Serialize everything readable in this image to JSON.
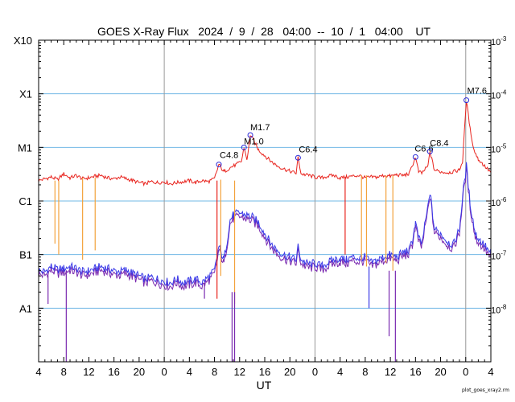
{
  "chart_data": {
    "type": "line",
    "title": "GOES X-Ray Flux   2024  /  9  /  28   04:00  --  10  /  1   04:00    UT",
    "xlabel": "UT",
    "x_tick_labels": [
      "4",
      "8",
      "12",
      "16",
      "20",
      "0",
      "4",
      "8",
      "12",
      "16",
      "20",
      "0",
      "4",
      "8",
      "12",
      "16",
      "20",
      "0",
      "4"
    ],
    "x_range_hours": [
      0,
      72
    ],
    "day_boundaries_hours": [
      20,
      44,
      68
    ],
    "y_scale": "log",
    "y_range": [
      1e-09,
      0.001
    ],
    "left_axis_labels": [
      {
        "label": "X10",
        "flux": 0.001
      },
      {
        "label": "X1",
        "flux": 0.0001
      },
      {
        "label": "M1",
        "flux": 1e-05
      },
      {
        "label": "C1",
        "flux": 1e-06
      },
      {
        "label": "B1",
        "flux": 1e-07
      },
      {
        "label": "A1",
        "flux": 1e-08
      }
    ],
    "right_axis_labels": [
      {
        "mant": "10",
        "exp": "-3",
        "flux": 0.001
      },
      {
        "mant": "10",
        "exp": "-4",
        "flux": 0.0001
      },
      {
        "mant": "10",
        "exp": "-5",
        "flux": 1e-05
      },
      {
        "mant": "10",
        "exp": "-6",
        "flux": 1e-06
      },
      {
        "mant": "10",
        "exp": "-7",
        "flux": 1e-07
      },
      {
        "mant": "10",
        "exp": "-8",
        "flux": 1e-08
      }
    ],
    "grid": "horizontal at class thresholds",
    "colors": {
      "long_channel": "#e8231d",
      "short_channel": "#3a3ae8",
      "short_channel_alt": "#7a2ab0",
      "gaps": "#f3a23c",
      "grid": "#72b8e6",
      "day_lines": "#999999",
      "markers": "#2b2bd8"
    },
    "flare_labels": [
      {
        "label": "C4.8",
        "t": 28.7,
        "flux": 4.8e-06
      },
      {
        "label": "M1.0",
        "t": 32.7,
        "flux": 1e-05
      },
      {
        "label": "M1.7",
        "t": 33.7,
        "flux": 1.7e-05
      },
      {
        "label": "C6.4",
        "t": 41.3,
        "flux": 6.4e-06
      },
      {
        "label": "C6.6",
        "t": 60.0,
        "flux": 6.6e-06
      },
      {
        "label": "C8.4",
        "t": 62.3,
        "flux": 8.4e-06
      },
      {
        "label": "M7.6",
        "t": 68.1,
        "flux": 7.6e-05
      }
    ],
    "series": [
      {
        "color": "red",
        "x": [
          0,
          1,
          2,
          3,
          4,
          5,
          6,
          7,
          8,
          9,
          10,
          11,
          12,
          13,
          14,
          15,
          16,
          17,
          18,
          19,
          20,
          21,
          22,
          23,
          24,
          25,
          26,
          27,
          28,
          28.7,
          29.5,
          30.5,
          31.5,
          32.3,
          32.7,
          33.2,
          33.7,
          34.3,
          35,
          36,
          37,
          38,
          39,
          40,
          41,
          41.3,
          41.8,
          43,
          44,
          45,
          46,
          47,
          48,
          49,
          50,
          51,
          52,
          53,
          54,
          55,
          56,
          57,
          58,
          59,
          60,
          60.5,
          61,
          62,
          62.3,
          63,
          64,
          65,
          66,
          67,
          67.5,
          68.1,
          68.7,
          69.3,
          70,
          71,
          72
        ],
        "y": [
          2.4e-06,
          2.6e-06,
          2.8e-06,
          2.5e-06,
          3.2e-06,
          2.7e-06,
          3e-06,
          2.6e-06,
          2.7e-06,
          2.9e-06,
          3e-06,
          2.7e-06,
          2.6e-06,
          2.8e-06,
          2.6e-06,
          2.4e-06,
          2.2e-06,
          2.1e-06,
          2.3e-06,
          2.2e-06,
          2.3e-06,
          2.1e-06,
          2.2e-06,
          2.3e-06,
          2.4e-06,
          2.2e-06,
          2.4e-06,
          2.3e-06,
          2.6e-06,
          4.8e-06,
          3.5e-06,
          4.2e-06,
          4.8e-06,
          5.5e-06,
          1e-05,
          5.8e-06,
          1.7e-05,
          1.3e-05,
          9e-06,
          7e-06,
          5.5e-06,
          4.5e-06,
          4e-06,
          3.6e-06,
          3.3e-06,
          6.4e-06,
          3.2e-06,
          3e-06,
          2.8e-06,
          2.7e-06,
          2.9e-06,
          3e-06,
          2.7e-06,
          2.8e-06,
          2.9e-06,
          3e-06,
          2.7e-06,
          2.8e-06,
          2.8e-06,
          3e-06,
          2.9e-06,
          3.1e-06,
          3e-06,
          3.2e-06,
          6.6e-06,
          3.5e-06,
          3.3e-06,
          4.5e-06,
          8.4e-06,
          3.8e-06,
          3.5e-06,
          3.4e-06,
          3.5e-06,
          3.8e-06,
          5.5e-06,
          7.6e-05,
          2.2e-05,
          9e-06,
          6e-06,
          4.5e-06,
          3.4e-06
        ]
      },
      {
        "color": "blue",
        "x": [
          0,
          1,
          2,
          3,
          4,
          5,
          6,
          7,
          8,
          9,
          10,
          11,
          12,
          13,
          14,
          15,
          16,
          17,
          18,
          19,
          20,
          21,
          22,
          23,
          24,
          25,
          26,
          27,
          28,
          28.7,
          29.5,
          30,
          30.5,
          31,
          32,
          33,
          34,
          35,
          36,
          37,
          38,
          39,
          40,
          41,
          41.3,
          41.8,
          43,
          44,
          45,
          46,
          47,
          48,
          49,
          50,
          51,
          52,
          53,
          54,
          55,
          56,
          57,
          58,
          59,
          59.5,
          60,
          60.5,
          61,
          62,
          62.3,
          63,
          64,
          65,
          66,
          67,
          67.5,
          68.1,
          68.7,
          69.5,
          70,
          71,
          72
        ],
        "y": [
          5e-08,
          4.8e-08,
          6e-08,
          5.2e-08,
          5.5e-08,
          6e-08,
          5.5e-08,
          4.8e-08,
          5e-08,
          5.5e-08,
          6e-08,
          5.5e-08,
          5e-08,
          4.8e-08,
          5.2e-08,
          4.5e-08,
          4e-08,
          3.5e-08,
          3.8e-08,
          3.5e-08,
          3.2e-08,
          3e-08,
          3.5e-08,
          3e-08,
          3.2e-08,
          3.5e-08,
          3e-08,
          3.8e-08,
          5e-08,
          1.4e-07,
          8e-08,
          1.8e-07,
          4.5e-07,
          5.5e-07,
          6e-07,
          5.5e-07,
          5e-07,
          4e-07,
          2.5e-07,
          1.6e-07,
          1.2e-07,
          1e-07,
          9e-08,
          8e-08,
          1.4e-07,
          8e-08,
          6.5e-08,
          7e-08,
          6e-08,
          7e-08,
          8e-08,
          8.5e-08,
          8e-08,
          9e-08,
          8.5e-08,
          9e-08,
          7e-08,
          8e-08,
          9e-08,
          1e-07,
          9e-08,
          1.1e-07,
          1.2e-07,
          1.8e-07,
          4e-07,
          2e-07,
          1.6e-07,
          8e-07,
          1.5e-06,
          3e-07,
          2.5e-07,
          1.8e-07,
          1.5e-07,
          3e-07,
          1.2e-06,
          4.5e-06,
          9e-07,
          2.5e-07,
          2e-07,
          1.5e-07,
          1e-07
        ]
      }
    ]
  },
  "footer": {
    "credit": "plot_goes_xray2.rm"
  }
}
